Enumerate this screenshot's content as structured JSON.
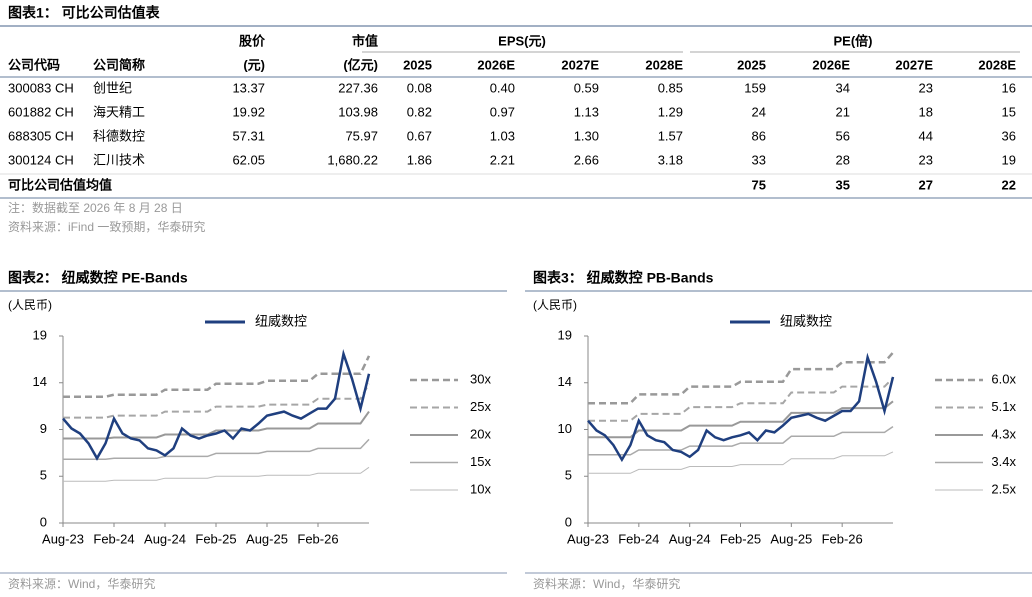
{
  "table_title": "图表1：  可比公司估值表",
  "table": {
    "header_groups": [
      "股价",
      "市值",
      "EPS(元)",
      "PE(倍)"
    ],
    "columns": [
      "公司代码",
      "公司简称",
      "(元)",
      "(亿元)",
      "2025",
      "2026E",
      "2027E",
      "2028E",
      "2025",
      "2026E",
      "2027E",
      "2028E"
    ],
    "rows": [
      [
        "300083 CH",
        "创世纪",
        "13.37",
        "227.36",
        "0.08",
        "0.40",
        "0.59",
        "0.85",
        "159",
        "34",
        "23",
        "16"
      ],
      [
        "601882 CH",
        "海天精工",
        "19.92",
        "103.98",
        "0.82",
        "0.97",
        "1.13",
        "1.29",
        "24",
        "21",
        "18",
        "15"
      ],
      [
        "688305 CH",
        "科德数控",
        "57.31",
        "75.97",
        "0.67",
        "1.03",
        "1.30",
        "1.57",
        "86",
        "56",
        "44",
        "36"
      ],
      [
        "300124 CH",
        "汇川技术",
        "62.05",
        "1,680.22",
        "1.86",
        "2.21",
        "2.66",
        "3.18",
        "33",
        "28",
        "23",
        "19"
      ]
    ],
    "average": {
      "label": "可比公司估值均值",
      "values": [
        "75",
        "35",
        "27",
        "22"
      ]
    }
  },
  "notes": [
    "注：数据截至 2026 年 8 月 28 日",
    "资料来源：iFind 一致预期，华泰研究"
  ],
  "chart_data": [
    {
      "type": "line",
      "title": "图表2：  纽威数控 PE-Bands",
      "y_label": "(人民币)",
      "source": "资料来源：Wind，华泰研究",
      "categories": [
        "Aug-23",
        null,
        null,
        null,
        null,
        null,
        "Feb-24",
        null,
        null,
        null,
        null,
        null,
        "Aug-24",
        null,
        null,
        null,
        null,
        null,
        "Feb-25",
        null,
        null,
        null,
        null,
        null,
        "Aug-25",
        null,
        null,
        null,
        null,
        null,
        "Feb-26",
        null,
        null,
        null,
        null,
        null,
        null
      ],
      "ylim": [
        0,
        18.8
      ],
      "yticks": [
        0,
        {
          "value": 4.7,
          "label": "5"
        },
        {
          "value": 9.4,
          "label": "9"
        },
        {
          "value": 14.1,
          "label": "14"
        },
        {
          "value": 18.8,
          "label": "19"
        }
      ],
      "series": [
        {
          "name": "纽威数控",
          "color": "#1f3f7f",
          "dash": false,
          "width": 2.5,
          "values": [
            10.5,
            9.5,
            9.0,
            8.0,
            6.5,
            8.0,
            10.5,
            9.0,
            8.5,
            8.3,
            7.5,
            7.3,
            6.8,
            7.5,
            9.5,
            8.8,
            8.5,
            8.8,
            9.0,
            9.3,
            8.5,
            9.5,
            9.3,
            10.0,
            10.8,
            11.0,
            11.2,
            10.8,
            10.5,
            11.0,
            11.5,
            11.5,
            12.5,
            17.0,
            14.5,
            11.5,
            15.0
          ]
        },
        {
          "name": "30x",
          "color": "#999999",
          "dash": true,
          "width": 2.5,
          "values": [
            12.7,
            12.7,
            12.7,
            12.7,
            12.7,
            12.7,
            12.9,
            12.9,
            12.9,
            12.9,
            12.9,
            12.9,
            13.4,
            13.4,
            13.4,
            13.4,
            13.4,
            13.4,
            14.0,
            14.0,
            14.0,
            14.0,
            14.0,
            14.0,
            14.3,
            14.3,
            14.3,
            14.3,
            14.3,
            14.3,
            15.0,
            15.0,
            15.0,
            15.0,
            15.0,
            15.0,
            16.8
          ]
        },
        {
          "name": "25x",
          "color": "#a6a6a6",
          "dash": true,
          "width": 2,
          "values": [
            10.6,
            10.6,
            10.6,
            10.6,
            10.6,
            10.6,
            10.8,
            10.8,
            10.8,
            10.8,
            10.8,
            10.8,
            11.2,
            11.2,
            11.2,
            11.2,
            11.2,
            11.2,
            11.7,
            11.7,
            11.7,
            11.7,
            11.7,
            11.7,
            11.9,
            11.9,
            11.9,
            11.9,
            11.9,
            11.9,
            12.5,
            12.5,
            12.5,
            12.5,
            12.5,
            12.5,
            14.0
          ]
        },
        {
          "name": "20x",
          "color": "#999999",
          "dash": false,
          "width": 2,
          "values": [
            8.5,
            8.5,
            8.5,
            8.5,
            8.5,
            8.5,
            8.6,
            8.6,
            8.6,
            8.6,
            8.6,
            8.6,
            8.9,
            8.9,
            8.9,
            8.9,
            8.9,
            8.9,
            9.3,
            9.3,
            9.3,
            9.3,
            9.3,
            9.3,
            9.5,
            9.5,
            9.5,
            9.5,
            9.5,
            9.5,
            10.0,
            10.0,
            10.0,
            10.0,
            10.0,
            10.0,
            11.2
          ]
        },
        {
          "name": "15x",
          "color": "#aaaaaa",
          "dash": false,
          "width": 1.5,
          "values": [
            6.4,
            6.4,
            6.4,
            6.4,
            6.4,
            6.4,
            6.5,
            6.5,
            6.5,
            6.5,
            6.5,
            6.5,
            6.7,
            6.7,
            6.7,
            6.7,
            6.7,
            6.7,
            7.0,
            7.0,
            7.0,
            7.0,
            7.0,
            7.0,
            7.2,
            7.2,
            7.2,
            7.2,
            7.2,
            7.2,
            7.5,
            7.5,
            7.5,
            7.5,
            7.5,
            7.5,
            8.4
          ]
        },
        {
          "name": "10x",
          "color": "#bbbbbb",
          "dash": false,
          "width": 1,
          "values": [
            4.2,
            4.2,
            4.2,
            4.2,
            4.2,
            4.2,
            4.3,
            4.3,
            4.3,
            4.3,
            4.3,
            4.3,
            4.5,
            4.5,
            4.5,
            4.5,
            4.5,
            4.5,
            4.7,
            4.7,
            4.7,
            4.7,
            4.7,
            4.7,
            4.8,
            4.8,
            4.8,
            4.8,
            4.8,
            4.8,
            5.0,
            5.0,
            5.0,
            5.0,
            5.0,
            5.0,
            5.6
          ]
        }
      ]
    },
    {
      "type": "line",
      "title": "图表3：  纽威数控 PB-Bands",
      "y_label": "(人民币)",
      "source": "资料来源：Wind，华泰研究",
      "categories": [
        "Aug-23",
        null,
        null,
        null,
        null,
        null,
        "Feb-24",
        null,
        null,
        null,
        null,
        null,
        "Aug-24",
        null,
        null,
        null,
        null,
        null,
        "Feb-25",
        null,
        null,
        null,
        null,
        null,
        "Aug-25",
        null,
        null,
        null,
        null,
        null,
        "Feb-26",
        null,
        null,
        null,
        null,
        null,
        null
      ],
      "ylim": [
        0,
        19.2
      ],
      "yticks": [
        0,
        {
          "value": 4.8,
          "label": "5"
        },
        {
          "value": 9.6,
          "label": "10"
        },
        {
          "value": 14.4,
          "label": "14"
        },
        {
          "value": 19.2,
          "label": "19"
        }
      ],
      "series": [
        {
          "name": "纽威数控",
          "color": "#1f3f7f",
          "dash": false,
          "width": 2.5,
          "values": [
            10.5,
            9.5,
            9.0,
            8.0,
            6.5,
            8.0,
            10.5,
            9.0,
            8.5,
            8.3,
            7.5,
            7.3,
            6.8,
            7.5,
            9.5,
            8.8,
            8.5,
            8.8,
            9.0,
            9.3,
            8.5,
            9.5,
            9.3,
            10.0,
            10.8,
            11.0,
            11.2,
            10.8,
            10.5,
            11.0,
            11.5,
            11.5,
            12.5,
            17.0,
            14.5,
            11.5,
            15.0
          ]
        },
        {
          "name": "6.0x",
          "color": "#999999",
          "dash": true,
          "width": 2.5,
          "values": [
            12.3,
            12.3,
            12.3,
            12.3,
            12.3,
            12.3,
            13.2,
            13.2,
            13.2,
            13.2,
            13.2,
            13.2,
            14.0,
            14.0,
            14.0,
            14.0,
            14.0,
            14.0,
            14.5,
            14.5,
            14.5,
            14.5,
            14.5,
            14.5,
            15.8,
            15.8,
            15.8,
            15.8,
            15.8,
            15.8,
            16.5,
            16.5,
            16.5,
            16.5,
            16.5,
            16.5,
            17.5
          ]
        },
        {
          "name": "5.1x",
          "color": "#a6a6a6",
          "dash": true,
          "width": 2,
          "values": [
            10.5,
            10.5,
            10.5,
            10.5,
            10.5,
            10.5,
            11.2,
            11.2,
            11.2,
            11.2,
            11.2,
            11.2,
            11.9,
            11.9,
            11.9,
            11.9,
            11.9,
            11.9,
            12.3,
            12.3,
            12.3,
            12.3,
            12.3,
            12.3,
            13.4,
            13.4,
            13.4,
            13.4,
            13.4,
            13.4,
            14.0,
            14.0,
            14.0,
            14.0,
            14.0,
            14.0,
            14.9
          ]
        },
        {
          "name": "4.3x",
          "color": "#999999",
          "dash": false,
          "width": 2,
          "values": [
            8.8,
            8.8,
            8.8,
            8.8,
            8.8,
            8.8,
            9.5,
            9.5,
            9.5,
            9.5,
            9.5,
            9.5,
            10.0,
            10.0,
            10.0,
            10.0,
            10.0,
            10.0,
            10.4,
            10.4,
            10.4,
            10.4,
            10.4,
            10.4,
            11.3,
            11.3,
            11.3,
            11.3,
            11.3,
            11.3,
            11.8,
            11.8,
            11.8,
            11.8,
            11.8,
            11.8,
            12.5
          ]
        },
        {
          "name": "3.4x",
          "color": "#aaaaaa",
          "dash": false,
          "width": 1.5,
          "values": [
            7.0,
            7.0,
            7.0,
            7.0,
            7.0,
            7.0,
            7.5,
            7.5,
            7.5,
            7.5,
            7.5,
            7.5,
            7.9,
            7.9,
            7.9,
            7.9,
            7.9,
            7.9,
            8.2,
            8.2,
            8.2,
            8.2,
            8.2,
            8.2,
            8.9,
            8.9,
            8.9,
            8.9,
            8.9,
            8.9,
            9.3,
            9.3,
            9.3,
            9.3,
            9.3,
            9.3,
            9.9
          ]
        },
        {
          "name": "2.5x",
          "color": "#bbbbbb",
          "dash": false,
          "width": 1,
          "values": [
            5.1,
            5.1,
            5.1,
            5.1,
            5.1,
            5.1,
            5.5,
            5.5,
            5.5,
            5.5,
            5.5,
            5.5,
            5.8,
            5.8,
            5.8,
            5.8,
            5.8,
            5.8,
            6.0,
            6.0,
            6.0,
            6.0,
            6.0,
            6.0,
            6.6,
            6.6,
            6.6,
            6.6,
            6.6,
            6.6,
            6.9,
            6.9,
            6.9,
            6.9,
            6.9,
            6.9,
            7.3
          ]
        }
      ]
    }
  ]
}
